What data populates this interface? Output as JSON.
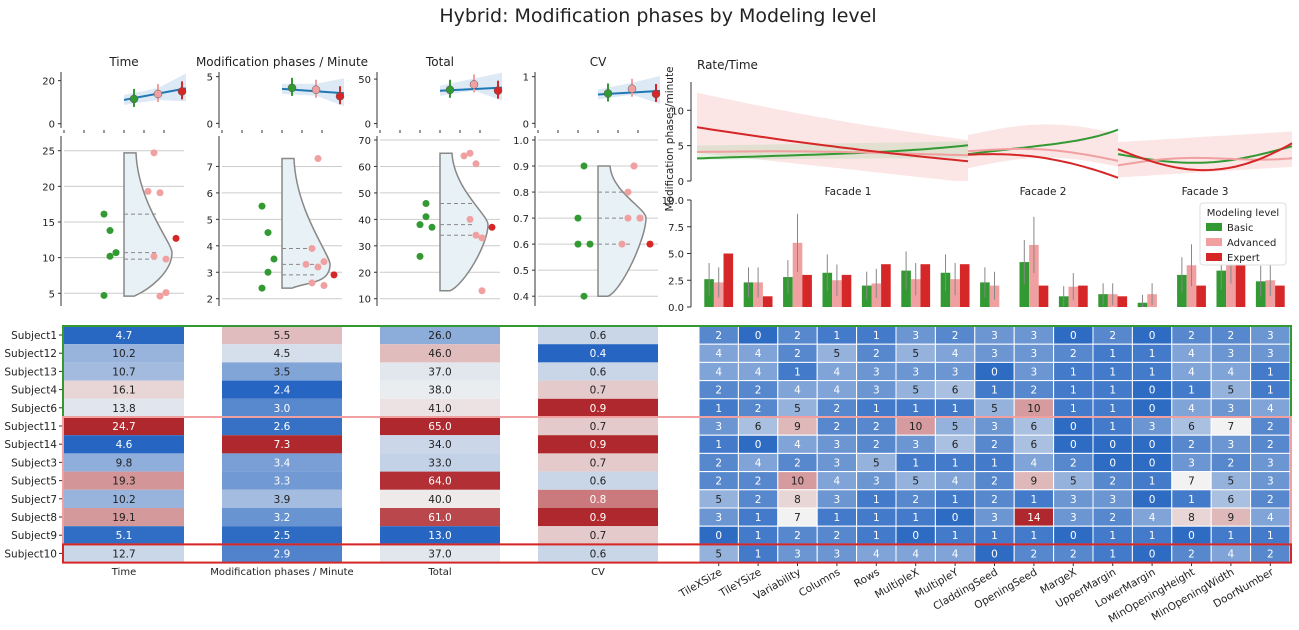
{
  "title": "Hybrid: Modification phases by Modeling level",
  "colors": {
    "Basic": "#339933",
    "Advanced": "#f0a0a0",
    "Expert": "#d62728",
    "trend": "#1f77b4",
    "violin": "#888888",
    "violinFill": "#e8f1f6",
    "grid": "#cccccc"
  },
  "subjects": [
    "Subject1",
    "Subject12",
    "Subject13",
    "Subject4",
    "Subject6",
    "Subject11",
    "Subject14",
    "Subject3",
    "Subject5",
    "Subject7",
    "Subject8",
    "Subject9",
    "Subject10"
  ],
  "subject_levels": [
    "Basic",
    "Basic",
    "Basic",
    "Basic",
    "Basic",
    "Advanced",
    "Advanced",
    "Advanced",
    "Advanced",
    "Advanced",
    "Advanced",
    "Advanced",
    "Expert"
  ],
  "metrics": [
    {
      "name": "Time",
      "top_ticks": [
        "0",
        "20"
      ],
      "top_range": [
        -2,
        24
      ],
      "top_points": [
        11.5,
        13.8,
        15.0
      ],
      "violin_ticks": [
        "5",
        "10",
        "15",
        "20",
        "25"
      ],
      "violin_range": [
        3.5,
        26.5
      ],
      "values": [
        "4.7",
        "10.2",
        "10.7",
        "16.1",
        "13.8",
        "24.7",
        "4.6",
        "9.8",
        "19.3",
        "10.2",
        "19.1",
        "5.1",
        "12.7"
      ]
    },
    {
      "name": "Modification phases / Minute",
      "top_ticks": [
        "0",
        "5"
      ],
      "top_range": [
        -0.5,
        5.5
      ],
      "top_points": [
        3.8,
        3.6,
        2.9
      ],
      "violin_ticks": [
        "2",
        "3",
        "4",
        "5",
        "6",
        "7"
      ],
      "violin_range": [
        1.8,
        8.0
      ],
      "values": [
        "5.5",
        "4.5",
        "3.5",
        "2.4",
        "3.0",
        "2.6",
        "7.3",
        "3.4",
        "3.3",
        "3.9",
        "3.2",
        "2.5",
        "2.9"
      ]
    },
    {
      "name": "Total",
      "top_ticks": [
        "0",
        "50"
      ],
      "top_range": [
        -5,
        58
      ],
      "top_points": [
        38,
        44,
        37
      ],
      "violin_ticks": [
        "10",
        "20",
        "30",
        "40",
        "50",
        "60",
        "70"
      ],
      "violin_range": [
        8,
        70
      ],
      "values": [
        "26.0",
        "46.0",
        "37.0",
        "38.0",
        "41.0",
        "65.0",
        "34.0",
        "33.0",
        "64.0",
        "40.0",
        "61.0",
        "13.0",
        "37.0"
      ]
    },
    {
      "name": "CV",
      "top_ticks": [
        "0",
        "1"
      ],
      "top_range": [
        -0.1,
        1.1
      ],
      "top_points": [
        0.64,
        0.74,
        0.63
      ],
      "violin_ticks": [
        "0.4",
        "0.5",
        "0.6",
        "0.7",
        "0.8",
        "0.9",
        "1.0"
      ],
      "violin_range": [
        0.37,
        1.0
      ],
      "values": [
        "0.6",
        "0.4",
        "0.6",
        "0.7",
        "0.9",
        "0.7",
        "0.9",
        "0.7",
        "0.6",
        "0.8",
        "0.9",
        "0.7",
        "0.6"
      ]
    }
  ],
  "rate_chart": {
    "title": "Rate/Time",
    "ylabel": "Modification phases/minute",
    "yticks": [
      "0",
      "5",
      "10"
    ],
    "facades": [
      "Facade 1",
      "Facade 2",
      "Facade 3"
    ],
    "ylim": [
      0,
      14
    ]
  },
  "bar_chart": {
    "yticks": [
      "0.0",
      "2.5",
      "5.0",
      "7.5",
      "10.0"
    ],
    "ylim": [
      0,
      10
    ],
    "legend_title": "Modeling level",
    "series": [
      {
        "name": "Basic",
        "values": [
          2.6,
          2.3,
          2.8,
          3.2,
          2.0,
          3.4,
          3.2,
          2.3,
          4.2,
          1.0,
          1.2,
          0.4,
          3.0,
          3.4,
          2.4
        ]
      },
      {
        "name": "Advanced",
        "values": [
          2.3,
          2.3,
          6.0,
          2.5,
          2.2,
          2.6,
          2.6,
          2.0,
          5.8,
          1.9,
          1.2,
          1.2,
          3.9,
          4.3,
          2.5
        ]
      },
      {
        "name": "Expert",
        "values": [
          5.0,
          1.0,
          3.0,
          3.0,
          4.0,
          4.0,
          4.0,
          0.0,
          2.0,
          2.0,
          1.0,
          0.0,
          2.0,
          4.0,
          2.0
        ]
      }
    ]
  },
  "parameters": [
    "TileXSize",
    "TileYSize",
    "Variability",
    "Columns",
    "Rows",
    "MultipleX",
    "MultipleY",
    "CladdingSeed",
    "OpeningSeed",
    "MargeX",
    "UpperMargin",
    "LowerMargin",
    "MinOpeningHeight",
    "MinOpeningWidth",
    "DoorNumber"
  ],
  "param_matrix": [
    [
      2,
      0,
      2,
      1,
      1,
      3,
      2,
      3,
      3,
      0,
      2,
      0,
      2,
      2,
      3
    ],
    [
      4,
      4,
      2,
      5,
      2,
      5,
      4,
      3,
      3,
      2,
      1,
      1,
      4,
      3,
      3
    ],
    [
      4,
      4,
      1,
      4,
      3,
      3,
      3,
      0,
      3,
      1,
      1,
      1,
      4,
      4,
      1
    ],
    [
      2,
      2,
      4,
      4,
      3,
      5,
      6,
      1,
      2,
      1,
      1,
      0,
      1,
      5,
      1
    ],
    [
      1,
      2,
      5,
      2,
      1,
      1,
      1,
      5,
      10,
      1,
      1,
      0,
      4,
      3,
      4
    ],
    [
      3,
      6,
      9,
      2,
      2,
      10,
      5,
      3,
      6,
      0,
      1,
      3,
      6,
      7,
      2
    ],
    [
      1,
      0,
      4,
      3,
      2,
      3,
      6,
      2,
      6,
      0,
      0,
      0,
      2,
      3,
      2
    ],
    [
      2,
      4,
      2,
      3,
      5,
      1,
      1,
      1,
      4,
      2,
      0,
      0,
      3,
      2,
      3
    ],
    [
      2,
      2,
      10,
      4,
      3,
      5,
      4,
      2,
      9,
      5,
      2,
      1,
      7,
      5,
      3
    ],
    [
      5,
      2,
      8,
      3,
      1,
      2,
      1,
      2,
      1,
      3,
      3,
      0,
      1,
      6,
      2
    ],
    [
      3,
      1,
      7,
      1,
      1,
      1,
      0,
      3,
      14,
      3,
      2,
      4,
      8,
      9,
      4
    ],
    [
      0,
      1,
      2,
      2,
      1,
      0,
      1,
      1,
      1,
      0,
      1,
      1,
      0,
      1,
      1
    ],
    [
      5,
      1,
      3,
      3,
      4,
      4,
      4,
      0,
      2,
      2,
      1,
      0,
      2,
      4,
      2
    ]
  ]
}
